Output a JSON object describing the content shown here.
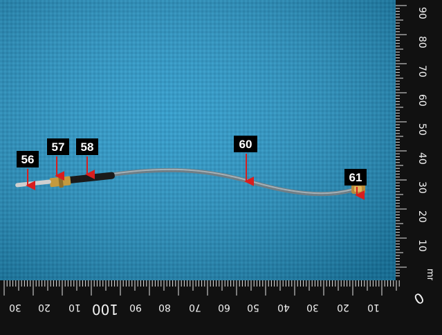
{
  "photo": {
    "background_color": "#1f8fc0",
    "ruler_color": "#111111",
    "callout_color": "#d81e1e"
  },
  "callouts": [
    {
      "label": "56"
    },
    {
      "label": "57"
    },
    {
      "label": "58"
    },
    {
      "label": "60"
    },
    {
      "label": "61"
    }
  ],
  "ruler": {
    "unit": "mm",
    "vertical_labels": [
      "90",
      "80",
      "70",
      "60",
      "50",
      "40",
      "30",
      "20",
      "10"
    ],
    "horizontal_labels": [
      "30",
      "20",
      "10",
      "100",
      "90",
      "80",
      "70",
      "60",
      "50",
      "40",
      "30",
      "20",
      "10"
    ],
    "corner_label": "0"
  }
}
